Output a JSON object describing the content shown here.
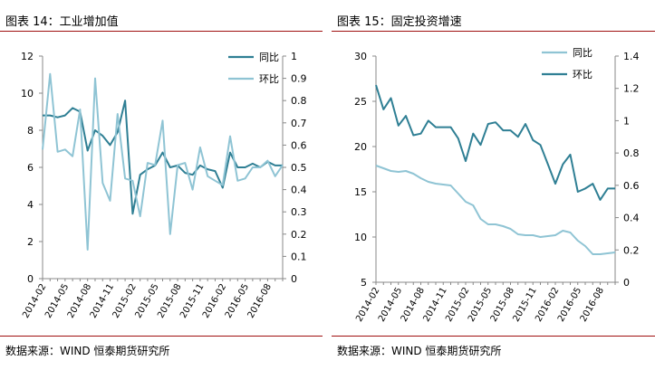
{
  "left": {
    "title": "图表 14：工业增加值",
    "source": "数据来源：WIND 恒泰期货研究所",
    "chart_data": {
      "type": "line",
      "title": "图表 14：工业增加值",
      "x": [
        "2014-02",
        "2014-03",
        "2014-04",
        "2014-05",
        "2014-06",
        "2014-07",
        "2014-08",
        "2014-09",
        "2014-10",
        "2014-11",
        "2014-12",
        "2015-01",
        "2015-02",
        "2015-03",
        "2015-04",
        "2015-05",
        "2015-06",
        "2015-07",
        "2015-08",
        "2015-09",
        "2015-10",
        "2015-11",
        "2015-12",
        "2016-01",
        "2016-02",
        "2016-03",
        "2016-04",
        "2016-05",
        "2016-06",
        "2016-07",
        "2016-08",
        "2016-09",
        "2016-10"
      ],
      "xtick_labels": [
        "2014-02",
        "2014-05",
        "2014-08",
        "2014-11",
        "2015-02",
        "2015-05",
        "2015-08",
        "2015-11",
        "2016-02",
        "2016-05",
        "2016-08"
      ],
      "ylim_left": [
        0,
        12
      ],
      "yticks_left": [
        "0",
        "2",
        "4",
        "6",
        "8",
        "10",
        "12"
      ],
      "ylim_right": [
        0,
        1
      ],
      "yticks_right": [
        "0",
        "0.1",
        "0.2",
        "0.3",
        "0.4",
        "0.5",
        "0.6",
        "0.7",
        "0.8",
        "0.9",
        "1"
      ],
      "legend_position": "top-right",
      "series": [
        {
          "name": "同比",
          "axis": "left",
          "color": "#2f7f94",
          "values": [
            8.8,
            8.8,
            8.7,
            8.8,
            9.2,
            9.0,
            6.9,
            8.0,
            7.7,
            7.2,
            7.9,
            9.6,
            3.5,
            5.6,
            5.9,
            6.1,
            6.8,
            6.0,
            6.1,
            5.7,
            5.6,
            6.1,
            5.9,
            5.8,
            4.9,
            6.8,
            6.0,
            6.0,
            6.2,
            6.0,
            6.3,
            6.1,
            6.1
          ]
        },
        {
          "name": "环比",
          "axis": "right",
          "color": "#8fc4d4",
          "values": [
            0.58,
            0.92,
            0.57,
            0.58,
            0.55,
            0.76,
            0.13,
            0.9,
            0.43,
            0.35,
            0.74,
            0.45,
            0.44,
            0.28,
            0.52,
            0.51,
            0.71,
            0.2,
            0.51,
            0.52,
            0.4,
            0.59,
            0.46,
            0.44,
            0.42,
            0.64,
            0.44,
            0.45,
            0.5,
            0.5,
            0.53,
            0.46,
            0.51
          ]
        }
      ]
    }
  },
  "right": {
    "title": "图表 15：固定投资增速",
    "source": "数据来源：WIND 恒泰期货研究所",
    "chart_data": {
      "type": "line",
      "title": "图表 15：固定投资增速",
      "x": [
        "2014-02",
        "2014-03",
        "2014-04",
        "2014-05",
        "2014-06",
        "2014-07",
        "2014-08",
        "2014-09",
        "2014-10",
        "2014-11",
        "2014-12",
        "2015-01",
        "2015-02",
        "2015-03",
        "2015-04",
        "2015-05",
        "2015-06",
        "2015-07",
        "2015-08",
        "2015-09",
        "2015-10",
        "2015-11",
        "2015-12",
        "2016-01",
        "2016-02",
        "2016-03",
        "2016-04",
        "2016-05",
        "2016-06",
        "2016-07",
        "2016-08",
        "2016-09",
        "2016-10"
      ],
      "xtick_labels": [
        "2014-02",
        "2014-05",
        "2014-08",
        "2014-11",
        "2015-02",
        "2015-05",
        "2015-08",
        "2015-11",
        "2016-02",
        "2016-05",
        "2016-08"
      ],
      "ylim_left": [
        5,
        30
      ],
      "yticks_left": [
        "5",
        "10",
        "15",
        "20",
        "25",
        "30"
      ],
      "ylim_right": [
        0,
        1.4
      ],
      "yticks_right": [
        "0",
        "0.2",
        "0.4",
        "0.6",
        "0.8",
        "1",
        "1.2",
        "1.4"
      ],
      "legend_position": "top-right",
      "series": [
        {
          "name": "同比",
          "axis": "left",
          "color": "#8fc4d4",
          "values": [
            17.9,
            17.6,
            17.3,
            17.2,
            17.3,
            17.0,
            16.5,
            16.1,
            15.9,
            15.8,
            15.7,
            14.8,
            13.9,
            13.5,
            12.0,
            11.4,
            11.4,
            11.2,
            10.9,
            10.3,
            10.2,
            10.2,
            10.0,
            10.1,
            10.2,
            10.7,
            10.5,
            9.6,
            9.0,
            8.1,
            8.1,
            8.2,
            8.3
          ]
        },
        {
          "name": "环比",
          "axis": "right",
          "color": "#2f7f94",
          "values": [
            1.22,
            1.07,
            1.14,
            0.97,
            1.03,
            0.91,
            0.92,
            1.0,
            0.96,
            0.96,
            0.96,
            0.89,
            0.75,
            0.92,
            0.85,
            0.98,
            0.99,
            0.94,
            0.94,
            0.9,
            0.98,
            0.88,
            0.85,
            0.73,
            0.61,
            0.73,
            0.79,
            0.56,
            0.58,
            0.61,
            0.51,
            0.58,
            0.58
          ]
        }
      ]
    }
  }
}
